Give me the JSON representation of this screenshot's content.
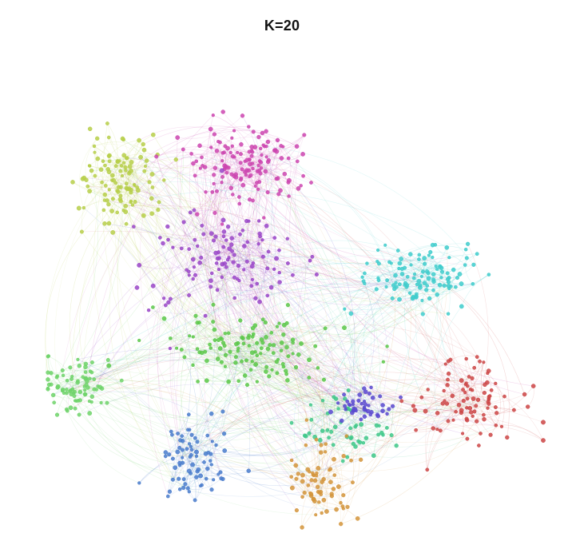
{
  "figure": {
    "title": "K=20"
  },
  "graph": {
    "type": "network-cluster-layout",
    "cluster_colors": {
      "yellow-green": "#b7cf4a",
      "magenta": "#cc46b0",
      "purple": "#9a46c8",
      "cyan": "#3fcccc",
      "green": "#5cc84a",
      "light-green": "#6fd36a",
      "sea-green": "#3fc88a",
      "blue": "#4a7ccc",
      "indigo": "#5a4ad0",
      "orange": "#d4953c",
      "red": "#cc4646"
    }
  }
}
